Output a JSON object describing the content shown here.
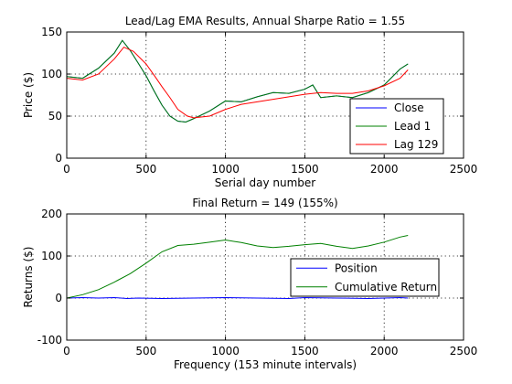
{
  "chart_data": [
    {
      "type": "line",
      "title": "Lead/Lag EMA Results, Annual Sharpe Ratio = 1.55",
      "xlabel": "Serial day number",
      "ylabel": "Price ($)",
      "xlim": [
        0,
        2500
      ],
      "ylim": [
        0,
        150
      ],
      "xticks": [
        0,
        500,
        1000,
        1500,
        2000,
        2500
      ],
      "yticks": [
        0,
        50,
        100,
        150
      ],
      "grid": true,
      "legend_placement": "lower-right",
      "series": [
        {
          "name": "Close",
          "color": "#0000ff",
          "x": [
            0,
            100,
            200,
            300,
            350,
            400,
            450,
            500,
            550,
            600,
            650,
            700,
            750,
            800,
            900,
            1000,
            1100,
            1200,
            1300,
            1400,
            1500,
            1550,
            1600,
            1700,
            1800,
            1900,
            2000,
            2100,
            2150
          ],
          "y": [
            97,
            95,
            107,
            125,
            140,
            128,
            113,
            98,
            80,
            63,
            50,
            44,
            43,
            47,
            56,
            68,
            67,
            73,
            78,
            77,
            82,
            87,
            72,
            74,
            72,
            78,
            87,
            106,
            112
          ]
        },
        {
          "name": "Lead 1",
          "color": "#008000",
          "x": [
            0,
            100,
            200,
            300,
            350,
            400,
            450,
            500,
            550,
            600,
            650,
            700,
            750,
            800,
            900,
            1000,
            1100,
            1200,
            1300,
            1400,
            1500,
            1550,
            1600,
            1700,
            1800,
            1900,
            2000,
            2100,
            2150
          ],
          "y": [
            97,
            95,
            107,
            125,
            140,
            128,
            113,
            98,
            80,
            63,
            50,
            44,
            43,
            47,
            56,
            68,
            67,
            73,
            78,
            77,
            82,
            87,
            72,
            74,
            72,
            78,
            87,
            106,
            112
          ]
        },
        {
          "name": "Lag 129",
          "color": "#ff0000",
          "x": [
            0,
            100,
            200,
            300,
            360,
            420,
            500,
            560,
            600,
            650,
            700,
            760,
            800,
            900,
            1000,
            1100,
            1200,
            1300,
            1400,
            1500,
            1600,
            1700,
            1800,
            1900,
            2000,
            2100,
            2150
          ],
          "y": [
            95,
            93,
            100,
            118,
            132,
            127,
            112,
            96,
            85,
            72,
            58,
            50,
            48,
            50,
            58,
            64,
            67,
            70,
            73,
            76,
            78,
            77,
            77,
            80,
            86,
            95,
            105
          ]
        }
      ]
    },
    {
      "type": "line",
      "title": "Final Return = 149 (155%)",
      "xlabel": "Frequency (153 minute intervals)",
      "ylabel": "Returns ($)",
      "xlim": [
        0,
        2500
      ],
      "ylim": [
        -100,
        200
      ],
      "xticks": [
        0,
        500,
        1000,
        1500,
        2000,
        2500
      ],
      "yticks": [
        -100,
        0,
        100,
        200
      ],
      "grid": true,
      "legend_placement": "lower-right",
      "series": [
        {
          "name": "Position",
          "color": "#0000ff",
          "x": [
            0,
            100,
            200,
            300,
            380,
            450,
            600,
            800,
            1000,
            1200,
            1400,
            1500,
            1700,
            1900,
            2100,
            2150
          ],
          "y": [
            0,
            1,
            0,
            1,
            -1,
            0,
            -1,
            0,
            1,
            0,
            -1,
            1,
            0,
            -1,
            1,
            0
          ]
        },
        {
          "name": "Cumulative Return",
          "color": "#008000",
          "x": [
            0,
            100,
            200,
            300,
            400,
            500,
            600,
            700,
            800,
            900,
            1000,
            1100,
            1200,
            1300,
            1400,
            1500,
            1600,
            1700,
            1800,
            1900,
            2000,
            2100,
            2150
          ],
          "y": [
            0,
            8,
            20,
            38,
            58,
            83,
            110,
            125,
            128,
            133,
            138,
            132,
            124,
            120,
            123,
            127,
            130,
            123,
            118,
            124,
            133,
            145,
            149
          ]
        }
      ]
    }
  ]
}
